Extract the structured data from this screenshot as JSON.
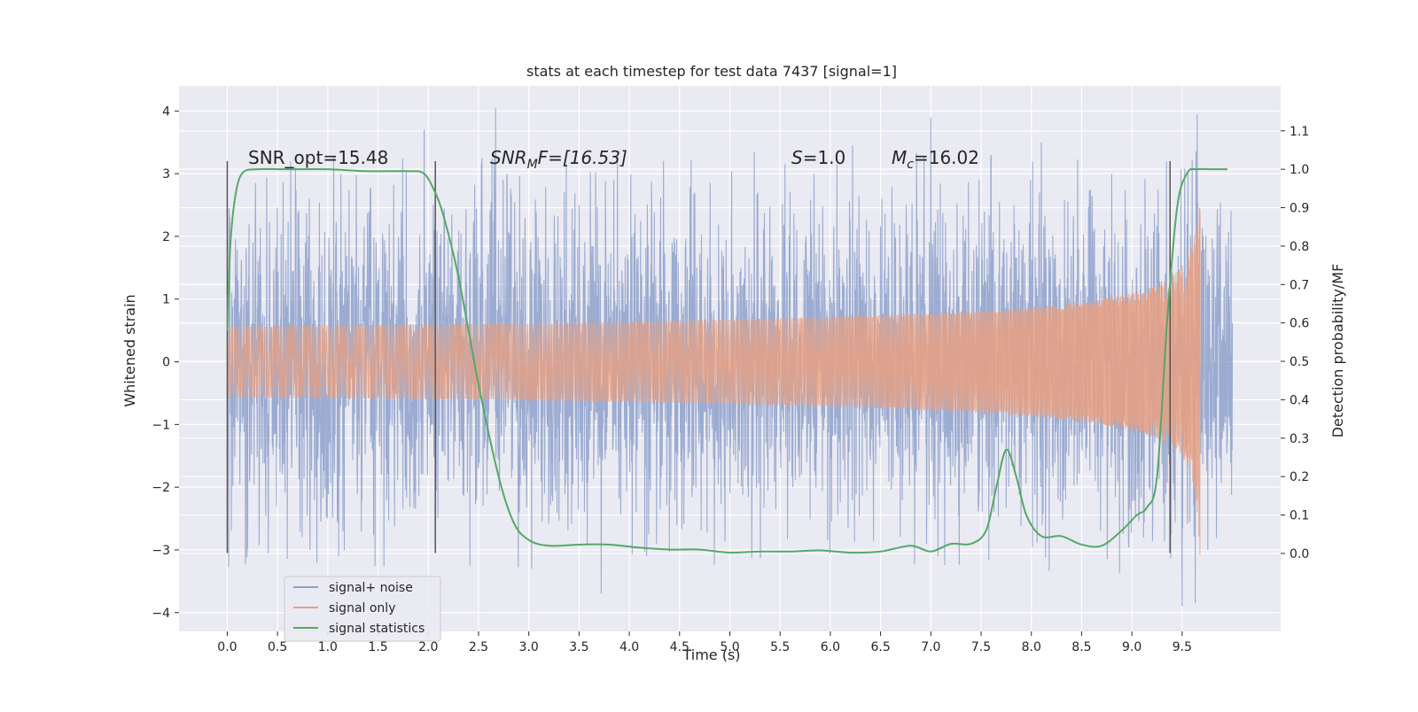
{
  "chart_data": {
    "type": "line",
    "title": "stats at each timestep for test data 7437 [signal=1]",
    "xlabel": "Time (s)",
    "ylabel_left": "Whitened strain",
    "ylabel_right": "Detection probability/MF",
    "xlim": [
      -0.48,
      10.48
    ],
    "ylim_left": [
      -4.3,
      4.4
    ],
    "ylim_right": [
      -0.203,
      1.217
    ],
    "x_ticks": [
      "0.0",
      "0.5",
      "1.0",
      "1.5",
      "2.0",
      "2.5",
      "3.0",
      "3.5",
      "4.0",
      "4.5",
      "5.0",
      "5.5",
      "6.0",
      "6.5",
      "7.0",
      "7.5",
      "8.0",
      "8.5",
      "9.0",
      "9.5"
    ],
    "x_tick_values": [
      0,
      0.5,
      1,
      1.5,
      2,
      2.5,
      3,
      3.5,
      4,
      4.5,
      5,
      5.5,
      6,
      6.5,
      7,
      7.5,
      8,
      8.5,
      9,
      9.5
    ],
    "y_left_ticks": [
      "−4",
      "−3",
      "−2",
      "−1",
      "0",
      "1",
      "2",
      "3",
      "4"
    ],
    "y_left_tick_values": [
      -4,
      -3,
      -2,
      -1,
      0,
      1,
      2,
      3,
      4
    ],
    "y_right_ticks": [
      "0.0",
      "0.1",
      "0.2",
      "0.3",
      "0.4",
      "0.5",
      "0.6",
      "0.7",
      "0.8",
      "0.9",
      "1.0",
      "1.1"
    ],
    "y_right_tick_values": [
      0,
      0.1,
      0.2,
      0.3,
      0.4,
      0.5,
      0.6,
      0.7,
      0.8,
      0.9,
      1.0,
      1.1
    ],
    "grid": true,
    "legend_position": "lower-left",
    "annotations": {
      "snr_opt": "SNR_opt=15.48",
      "snr_mf_main": "SNR",
      "snr_mf_sub": "M",
      "snr_mf_rest": "F=[16.53]",
      "s_main": "S",
      "s_rest": "=1.0",
      "mc_main": "M",
      "mc_sub": "c",
      "mc_rest": "=16.02"
    },
    "vertical_markers": [
      {
        "x": 0.0,
        "y_range": [
          -3.05,
          3.2
        ]
      },
      {
        "x": 2.07,
        "y_range": [
          -3.05,
          3.2
        ]
      },
      {
        "x": 9.38,
        "y_range": [
          -3.05,
          3.2
        ]
      }
    ],
    "series": [
      {
        "name": "signal+ noise",
        "color": "#8da0cb",
        "axis": "left",
        "kind": "noise",
        "x_range": [
          0.0,
          10.0
        ],
        "typical_amplitude": 1.3,
        "peaks": [
          {
            "x": 0.02,
            "y": 2.45
          },
          {
            "x": 0.63,
            "y": 3.2
          },
          {
            "x": 1.11,
            "y": -3.1
          },
          {
            "x": 1.96,
            "y": 3.7
          },
          {
            "x": 2.67,
            "y": 4.05
          },
          {
            "x": 3.03,
            "y": -3.3
          },
          {
            "x": 3.72,
            "y": -3.7
          },
          {
            "x": 5.55,
            "y": 3.15
          },
          {
            "x": 6.22,
            "y": 3.45
          },
          {
            "x": 7.0,
            "y": 3.9
          },
          {
            "x": 7.6,
            "y": 3.3
          },
          {
            "x": 8.1,
            "y": 3.5
          },
          {
            "x": 9.5,
            "y": -3.9
          },
          {
            "x": 9.65,
            "y": 3.95
          },
          {
            "x": 9.63,
            "y": -3.85
          }
        ]
      },
      {
        "name": "signal only",
        "color": "#e8a083",
        "axis": "left",
        "kind": "chirp",
        "x_range": [
          0.0,
          9.68
        ],
        "merger_time": 9.68,
        "peak_amplitude": 2.65
      },
      {
        "name": "signal statistics",
        "color": "#55a868",
        "axis": "right",
        "kind": "line",
        "x": [
          0.0,
          0.03,
          0.08,
          0.15,
          0.3,
          0.6,
          1.0,
          1.4,
          1.8,
          1.95,
          2.05,
          2.15,
          2.3,
          2.5,
          2.7,
          2.85,
          3.0,
          3.2,
          3.5,
          3.8,
          4.1,
          4.4,
          4.7,
          5.0,
          5.3,
          5.6,
          5.9,
          6.2,
          6.5,
          6.8,
          7.0,
          7.2,
          7.4,
          7.55,
          7.65,
          7.75,
          7.85,
          7.95,
          8.1,
          8.3,
          8.5,
          8.7,
          8.9,
          9.05,
          9.15,
          9.25,
          9.35,
          9.45,
          9.55,
          9.65,
          9.8,
          9.95
        ],
        "y": [
          0.58,
          0.8,
          0.93,
          0.99,
          1.0,
          1.0,
          1.0,
          0.995,
          0.995,
          0.99,
          0.95,
          0.88,
          0.72,
          0.44,
          0.2,
          0.08,
          0.035,
          0.02,
          0.023,
          0.023,
          0.015,
          0.01,
          0.01,
          0.002,
          0.005,
          0.005,
          0.008,
          0.002,
          0.005,
          0.02,
          0.005,
          0.025,
          0.025,
          0.06,
          0.17,
          0.27,
          0.2,
          0.1,
          0.045,
          0.045,
          0.023,
          0.02,
          0.06,
          0.1,
          0.12,
          0.2,
          0.6,
          0.9,
          0.99,
          1.0,
          1.0,
          1.0
        ]
      }
    ]
  }
}
